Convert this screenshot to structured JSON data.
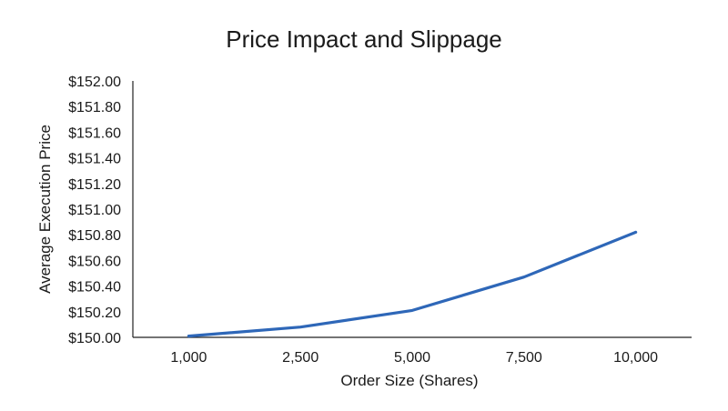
{
  "chart_data": {
    "type": "line",
    "title": "Price Impact and Slippage",
    "xlabel": "Order Size (Shares)",
    "ylabel": "Average Execution Price",
    "categories": [
      "1,000",
      "2,500",
      "5,000",
      "7,500",
      "10,000"
    ],
    "series": [
      {
        "name": "",
        "values": [
          150.01,
          150.08,
          150.21,
          150.47,
          150.82
        ]
      }
    ],
    "ylim": [
      150.0,
      152.0
    ],
    "yticks": [
      150.0,
      150.2,
      150.4,
      150.6,
      150.8,
      151.0,
      151.2,
      151.4,
      151.6,
      151.8,
      152.0
    ],
    "ytick_labels": [
      "$150.00",
      "$150.20",
      "$150.40",
      "$150.60",
      "$150.80",
      "$151.00",
      "$151.20",
      "$151.40",
      "$151.60",
      "$151.80",
      "$152.00"
    ],
    "grid": false,
    "legend": "none",
    "line_color": "#2e67b8"
  }
}
